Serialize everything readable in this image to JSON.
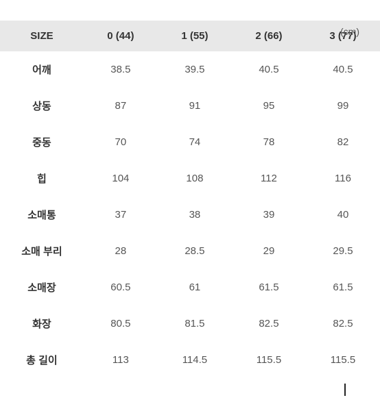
{
  "unit": "(cm)",
  "table": {
    "type": "table",
    "columns": [
      "SIZE",
      "0 (44)",
      "1 (55)",
      "2 (66)",
      "3 (77)"
    ],
    "rows": [
      [
        "어깨",
        "38.5",
        "39.5",
        "40.5",
        "40.5"
      ],
      [
        "상동",
        "87",
        "91",
        "95",
        "99"
      ],
      [
        "중동",
        "70",
        "74",
        "78",
        "82"
      ],
      [
        "힙",
        "104",
        "108",
        "112",
        "116"
      ],
      [
        "소매통",
        "37",
        "38",
        "39",
        "40"
      ],
      [
        "소매 부리",
        "28",
        "28.5",
        "29",
        "29.5"
      ],
      [
        "소매장",
        "60.5",
        "61",
        "61.5",
        "61.5"
      ],
      [
        "화장",
        "80.5",
        "81.5",
        "82.5",
        "82.5"
      ],
      [
        "총 길이",
        "113",
        "114.5",
        "115.5",
        "115.5"
      ]
    ],
    "header_bg": "#e8e8e8",
    "background_color": "#ffffff",
    "header_font_weight": 700,
    "header_fontsize": 15,
    "cell_fontsize": 15,
    "first_col_font_weight": 700,
    "text_color": "#555555",
    "header_text_color": "#333333"
  }
}
